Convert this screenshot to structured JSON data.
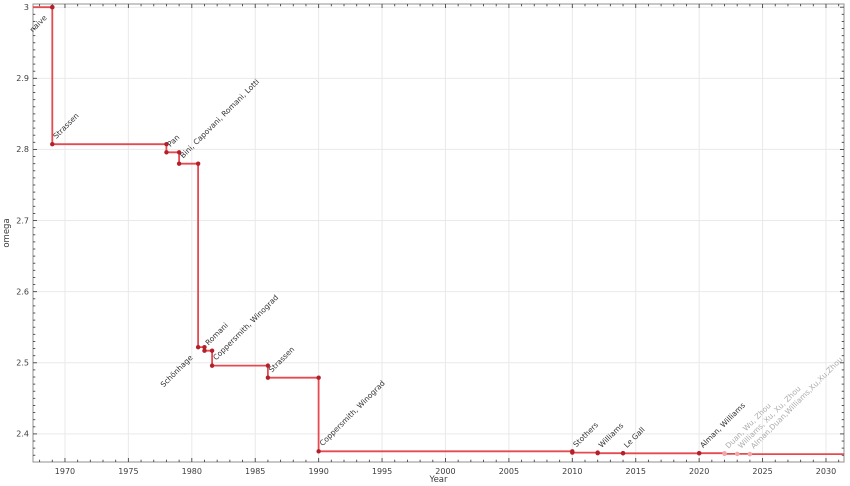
{
  "chart_data": {
    "type": "line",
    "subtype": "step-pre",
    "title": "",
    "xlabel": "Year",
    "ylabel": "omega",
    "xlim": [
      1967.48,
      2031.42
    ],
    "ylim": [
      2.3605,
      3.0045
    ],
    "x_major_ticks": [
      1970,
      1975,
      1980,
      1985,
      1990,
      1995,
      2000,
      2005,
      2010,
      2015,
      2020,
      2025,
      2030
    ],
    "x_tick_labels": [
      "1970",
      "1975",
      "1980",
      "1985",
      "1990",
      "1995",
      "2000",
      "2005",
      "2010",
      "2015",
      "2020",
      "2025",
      "2030"
    ],
    "y_major_ticks": [
      2.4,
      2.5,
      2.6,
      2.7,
      2.8,
      2.9,
      3.0
    ],
    "y_tick_labels": [
      "2.4",
      "2.5",
      "2.6",
      "2.7",
      "2.8",
      "2.9",
      "3"
    ],
    "x_minor_step": 1,
    "y_minor_step": 0.01,
    "grid": true,
    "legend": "none",
    "events": [
      {
        "label": "naive",
        "year": 1969,
        "omega": 3.0,
        "faded": false,
        "label_mode": "down"
      },
      {
        "label": "Strassen",
        "year": 1969,
        "omega": 2.8074,
        "faded": false,
        "label_mode": "up"
      },
      {
        "label": "Pan",
        "year": 1978,
        "omega": 2.796,
        "faded": false,
        "label_mode": "up"
      },
      {
        "label": "Bini, Capovani, Romani, Lotti",
        "year": 1979,
        "omega": 2.78,
        "faded": false,
        "label_mode": "up"
      },
      {
        "label": "Schönhage",
        "year": 1980.5,
        "omega": 2.522,
        "faded": false,
        "label_mode": "down"
      },
      {
        "label": "Romani",
        "year": 1981,
        "omega": 2.517,
        "faded": false,
        "label_mode": "up"
      },
      {
        "label": "Coppersmith, Winograd",
        "year": 1981.6,
        "omega": 2.496,
        "faded": false,
        "label_mode": "up"
      },
      {
        "label": "Strassen",
        "year": 1986,
        "omega": 2.479,
        "faded": false,
        "label_mode": "up"
      },
      {
        "label": "Coppersmith, Winograd",
        "year": 1990,
        "omega": 2.3755,
        "faded": false,
        "label_mode": "up"
      },
      {
        "label": "Stothers",
        "year": 2010,
        "omega": 2.3737,
        "faded": false,
        "label_mode": "up"
      },
      {
        "label": "Williams",
        "year": 2012,
        "omega": 2.3729,
        "faded": false,
        "label_mode": "up"
      },
      {
        "label": "Le Gall",
        "year": 2014,
        "omega": 2.3728,
        "faded": false,
        "label_mode": "up"
      },
      {
        "label": "Alman, Williams",
        "year": 2020,
        "omega": 2.37286,
        "faded": false,
        "label_mode": "up"
      },
      {
        "label": "Duan, Wu, Zhou",
        "year": 2022,
        "omega": 2.37188,
        "faded": true,
        "label_mode": "up"
      },
      {
        "label": "Williams, Xu, Xu, Zhou",
        "year": 2023,
        "omega": 2.371866,
        "faded": true,
        "label_mode": "up"
      },
      {
        "label": "Alman,Duan,Williams,Xu,Xu,Zhou",
        "year": 2024,
        "omega": 2.371552,
        "faded": true,
        "label_mode": "up"
      }
    ],
    "colors": {
      "line": "#e64a51",
      "marker": "#b2202a",
      "faded_marker": "#f0a8ac",
      "label": "#333333",
      "faded_label": "#adadad",
      "grid": "#e9e9e9",
      "spine": "#909090",
      "tick": "#444444",
      "tick_label": "#3c3c3c",
      "background": "#ffffff"
    }
  }
}
